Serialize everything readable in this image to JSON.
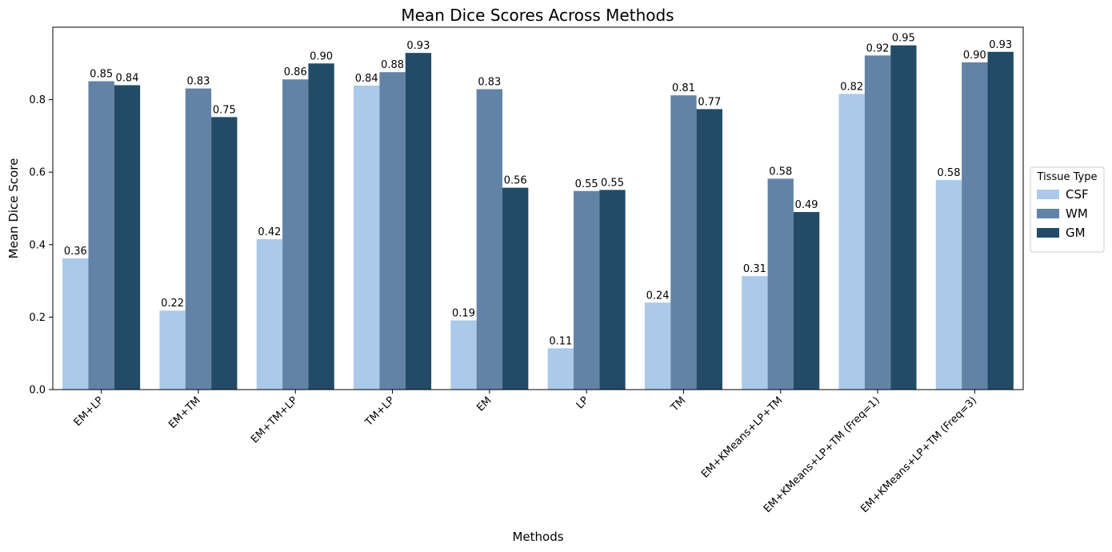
{
  "chart_data": {
    "type": "bar",
    "title": "Mean Dice Scores Across Methods",
    "xlabel": "Methods",
    "ylabel": "Mean Dice Score",
    "ylim": [
      0,
      1.0
    ],
    "yticks": [
      "0.0",
      "0.2",
      "0.4",
      "0.6",
      "0.8"
    ],
    "categories": [
      "EM+LP",
      "EM+TM",
      "EM+TM+LP",
      "TM+LP",
      "EM",
      "LP",
      "TM",
      "EM+KMeans+LP+TM",
      "EM+KMeans+LP+TM (Freq=1)",
      "EM+KMeans+LP+TM (Freq=3)"
    ],
    "series": [
      {
        "name": "CSF",
        "color": "#abc9e8",
        "values": [
          0.362,
          0.218,
          0.415,
          0.839,
          0.191,
          0.114,
          0.24,
          0.313,
          0.816,
          0.578
        ],
        "labels": [
          "0.36",
          "0.22",
          "0.42",
          "0.84",
          "0.19",
          "0.11",
          "0.24",
          "0.31",
          "0.82",
          "0.58"
        ]
      },
      {
        "name": "WM",
        "color": "#6383a6",
        "values": [
          0.851,
          0.831,
          0.856,
          0.876,
          0.829,
          0.548,
          0.812,
          0.582,
          0.922,
          0.903
        ],
        "labels": [
          "0.85",
          "0.83",
          "0.86",
          "0.88",
          "0.83",
          "0.55",
          "0.81",
          "0.58",
          "0.92",
          "0.90"
        ]
      },
      {
        "name": "GM",
        "color": "#234b67",
        "values": [
          0.84,
          0.752,
          0.9,
          0.929,
          0.557,
          0.551,
          0.774,
          0.49,
          0.95,
          0.932
        ],
        "labels": [
          "0.84",
          "0.75",
          "0.90",
          "0.93",
          "0.56",
          "0.55",
          "0.77",
          "0.49",
          "0.95",
          "0.93"
        ]
      }
    ],
    "legend": {
      "title": "Tissue Type",
      "placement": "center-right-outside"
    },
    "grid": false
  }
}
